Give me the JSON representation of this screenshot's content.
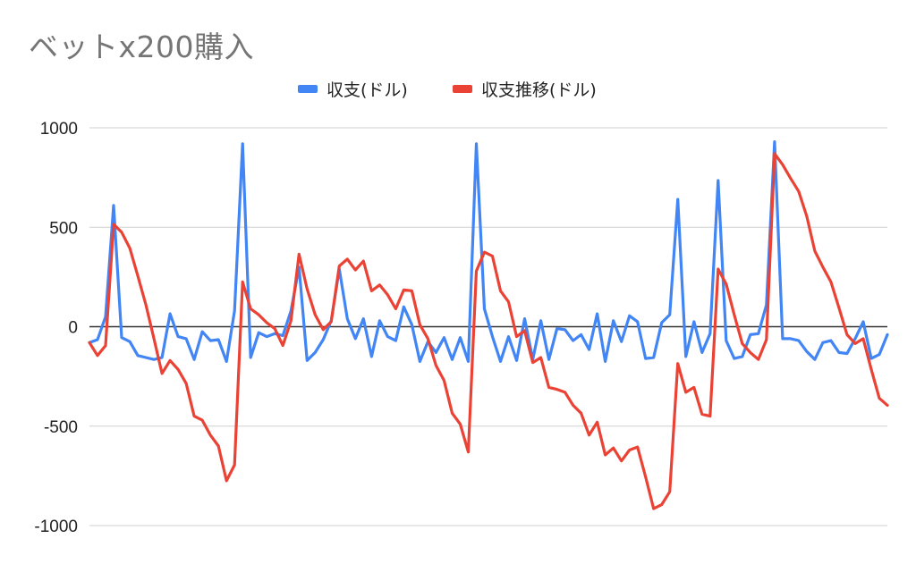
{
  "chart_data": {
    "type": "line",
    "title": "ベットx200購入",
    "legend_position": "top",
    "ylim": [
      -1000,
      1000
    ],
    "y_ticks": [
      1000,
      500,
      0,
      -500,
      -1000
    ],
    "grid": true,
    "series": [
      {
        "name": "収支(ドル)",
        "color": "#4285f4",
        "values": [
          -80,
          -65,
          50,
          610,
          -55,
          -75,
          -145,
          -155,
          -165,
          -155,
          65,
          -50,
          -60,
          -165,
          -25,
          -70,
          -65,
          -175,
          80,
          920,
          -155,
          -30,
          -50,
          -35,
          -45,
          80,
          300,
          -170,
          -130,
          -65,
          30,
          290,
          40,
          -60,
          40,
          -150,
          30,
          -50,
          -70,
          100,
          10,
          -175,
          -75,
          -130,
          -55,
          -165,
          -55,
          -175,
          920,
          90,
          -50,
          -175,
          -50,
          -170,
          40,
          -165,
          30,
          -165,
          -10,
          -15,
          -70,
          -40,
          -115,
          65,
          -175,
          30,
          -75,
          55,
          25,
          -160,
          -155,
          20,
          60,
          640,
          -150,
          25,
          -130,
          -35,
          735,
          -70,
          -160,
          -150,
          -40,
          -35,
          110,
          930,
          -60,
          -60,
          -70,
          -125,
          -165,
          -80,
          -70,
          -130,
          -135,
          -60,
          25,
          -160,
          -140,
          -40
        ]
      },
      {
        "name": "収支推移(ドル)",
        "color": "#ea4335",
        "values": [
          -80,
          -145,
          -95,
          515,
          475,
          395,
          255,
          110,
          -60,
          -235,
          -170,
          -215,
          -285,
          -450,
          -470,
          -545,
          -600,
          -775,
          -695,
          225,
          90,
          60,
          20,
          -10,
          -95,
          30,
          365,
          190,
          60,
          -15,
          25,
          305,
          340,
          285,
          330,
          180,
          210,
          160,
          90,
          185,
          180,
          10,
          -60,
          -195,
          -270,
          -435,
          -490,
          -630,
          280,
          375,
          355,
          180,
          125,
          -50,
          -20,
          -180,
          -155,
          -305,
          -315,
          -330,
          -395,
          -435,
          -545,
          -480,
          -645,
          -610,
          -675,
          -620,
          -605,
          -755,
          -915,
          -895,
          -830,
          -185,
          -330,
          -305,
          -440,
          -450,
          290,
          215,
          60,
          -85,
          -130,
          -165,
          -65,
          870,
          815,
          745,
          680,
          555,
          380,
          300,
          225,
          95,
          -40,
          -85,
          -60,
          -215,
          -360,
          -395
        ]
      }
    ]
  }
}
